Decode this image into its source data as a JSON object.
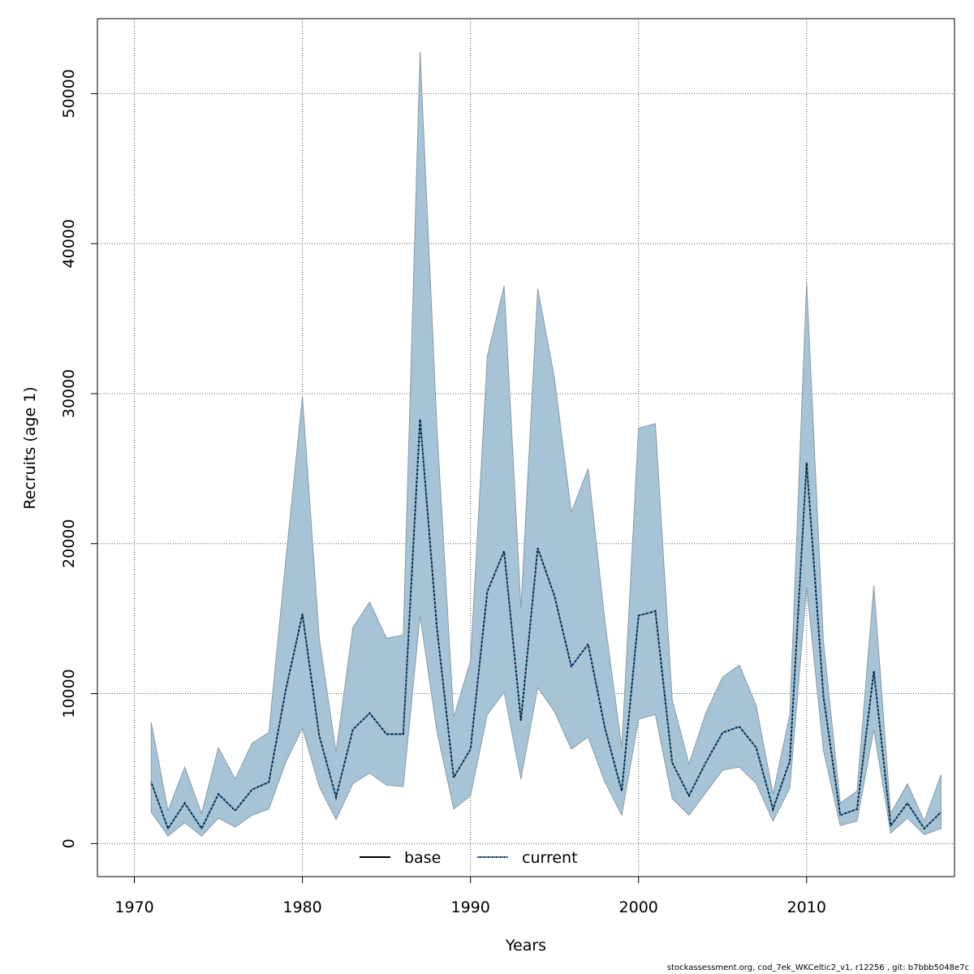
{
  "chart_data": {
    "type": "line",
    "xlabel": "Years",
    "ylabel": "Recruits (age 1)",
    "xlim": [
      1967.8,
      2018.8
    ],
    "ylim": [
      -2200,
      55000
    ],
    "x_ticks": [
      1970,
      1980,
      1990,
      2000,
      2010
    ],
    "y_ticks": [
      0,
      10000,
      20000,
      30000,
      40000,
      50000
    ],
    "grid": true,
    "legend_position": "bottom-center",
    "band_color": "#a6c4d6",
    "band_edge_color": "#8a9aa6",
    "legend": [
      {
        "label": "base",
        "style": "solid",
        "color": "#000000"
      },
      {
        "label": "current",
        "style": "dotted",
        "color": "#000000",
        "dot_color": "#1f6fb0"
      }
    ],
    "x": [
      1971,
      1972,
      1973,
      1974,
      1975,
      1976,
      1977,
      1978,
      1979,
      1980,
      1981,
      1982,
      1983,
      1984,
      1985,
      1986,
      1987,
      1988,
      1989,
      1990,
      1991,
      1992,
      1993,
      1994,
      1995,
      1996,
      1997,
      1998,
      1999,
      2000,
      2001,
      2002,
      2003,
      2004,
      2005,
      2006,
      2007,
      2008,
      2009,
      2010,
      2011,
      2012,
      2013,
      2014,
      2015,
      2016,
      2017,
      2018
    ],
    "series": [
      {
        "name": "base",
        "values": [
          4100,
          1000,
          2700,
          1000,
          3300,
          2200,
          3600,
          4100,
          10200,
          15300,
          7200,
          3100,
          7600,
          8700,
          7300,
          7300,
          28300,
          14400,
          4400,
          6300,
          16800,
          19500,
          8200,
          19700,
          16500,
          11800,
          13300,
          7700,
          3500,
          15200,
          15500,
          5400,
          3200,
          5400,
          7400,
          7800,
          6400,
          2300,
          5500,
          25400,
          9800,
          1900,
          2300,
          11500,
          1200,
          2700,
          1000,
          2100
        ]
      },
      {
        "name": "current",
        "values": [
          4100,
          1000,
          2700,
          1000,
          3300,
          2200,
          3600,
          4100,
          10200,
          15300,
          7200,
          3100,
          7600,
          8700,
          7300,
          7300,
          28300,
          14400,
          4400,
          6300,
          16800,
          19500,
          8200,
          19700,
          16500,
          11800,
          13300,
          7700,
          3500,
          15200,
          15500,
          5400,
          3200,
          5400,
          7400,
          7800,
          6400,
          2300,
          5500,
          25400,
          9800,
          1900,
          2300,
          11500,
          1200,
          2700,
          1000,
          2100
        ]
      }
    ],
    "band_upper": [
      8100,
      2200,
      5100,
      2000,
      6400,
      4300,
      6700,
      7400,
      18800,
      29800,
      13700,
      6100,
      14400,
      16100,
      13700,
      13900,
      52800,
      27800,
      8400,
      12200,
      32500,
      37200,
      15700,
      37000,
      31000,
      22100,
      25000,
      14800,
      6400,
      27700,
      28000,
      9600,
      5300,
      8700,
      11100,
      11900,
      9200,
      3300,
      8600,
      37400,
      13500,
      2700,
      3500,
      17200,
      2000,
      4000,
      1500,
      4600
    ],
    "band_lower": [
      2100,
      500,
      1400,
      500,
      1700,
      1100,
      1900,
      2300,
      5400,
      7700,
      3800,
      1600,
      4000,
      4700,
      3900,
      3800,
      15200,
      7500,
      2300,
      3200,
      8600,
      10100,
      4300,
      10400,
      8800,
      6300,
      7100,
      4100,
      1900,
      8300,
      8600,
      3000,
      1900,
      3400,
      4900,
      5100,
      4000,
      1500,
      3700,
      17100,
      6200,
      1200,
      1500,
      7600,
      700,
      1700,
      600,
      1000
    ]
  },
  "footer": {
    "text": "stockassessment.org, cod_7ek_WKCeltic2_v1, r12256 , git: b7bbb5048e7c"
  }
}
